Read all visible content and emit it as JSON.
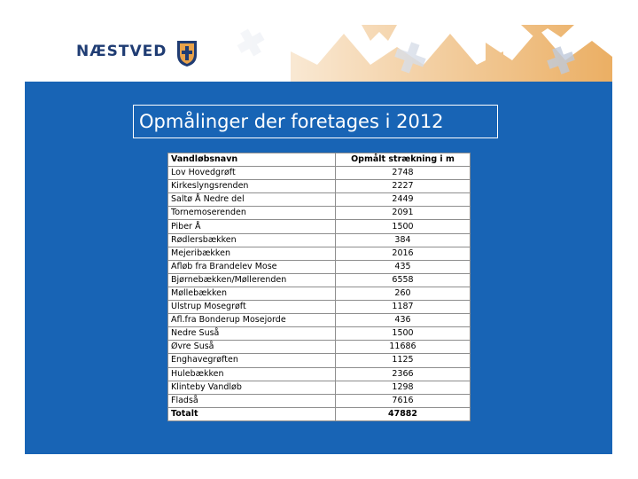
{
  "header": {
    "logo_text": "NÆSTVED",
    "colors": {
      "blue": "#1f3c73",
      "orange": "#e8a24a",
      "background_blue": "#1864b5"
    }
  },
  "slide": {
    "title": "Opmålinger der foretages i 2012"
  },
  "table": {
    "columns": [
      "Vandløbsnavn",
      "Opmålt strækning i m"
    ],
    "rows": [
      {
        "name": "Lov Hovedgrøft",
        "value": "2748"
      },
      {
        "name": "Kirkeslyngsrenden",
        "value": "2227"
      },
      {
        "name": "Saltø Å Nedre del",
        "value": "2449"
      },
      {
        "name": "Tornemoserenden",
        "value": "2091"
      },
      {
        "name": "Piber Å",
        "value": "1500"
      },
      {
        "name": "Rødlersbækken",
        "value": "384"
      },
      {
        "name": "Mejeribækken",
        "value": "2016"
      },
      {
        "name": "Afløb fra Brandelev Mose",
        "value": "435"
      },
      {
        "name": "Bjørnebækken/Møllerenden",
        "value": "6558"
      },
      {
        "name": "Møllebækken",
        "value": "260"
      },
      {
        "name": "Ulstrup Mosegrøft",
        "value": "1187"
      },
      {
        "name": "Afl.fra Bonderup Mosejorde",
        "value": "436"
      },
      {
        "name": "Nedre Suså",
        "value": "1500"
      },
      {
        "name": "Øvre Suså",
        "value": "11686"
      },
      {
        "name": "Enghavegrøften",
        "value": "1125"
      },
      {
        "name": "Hulebækken",
        "value": "2366"
      },
      {
        "name": "Klinteby Vandløb",
        "value": "1298"
      },
      {
        "name": "Fladså",
        "value": "7616"
      }
    ],
    "total_label": "Totalt",
    "total_value": "47882"
  }
}
